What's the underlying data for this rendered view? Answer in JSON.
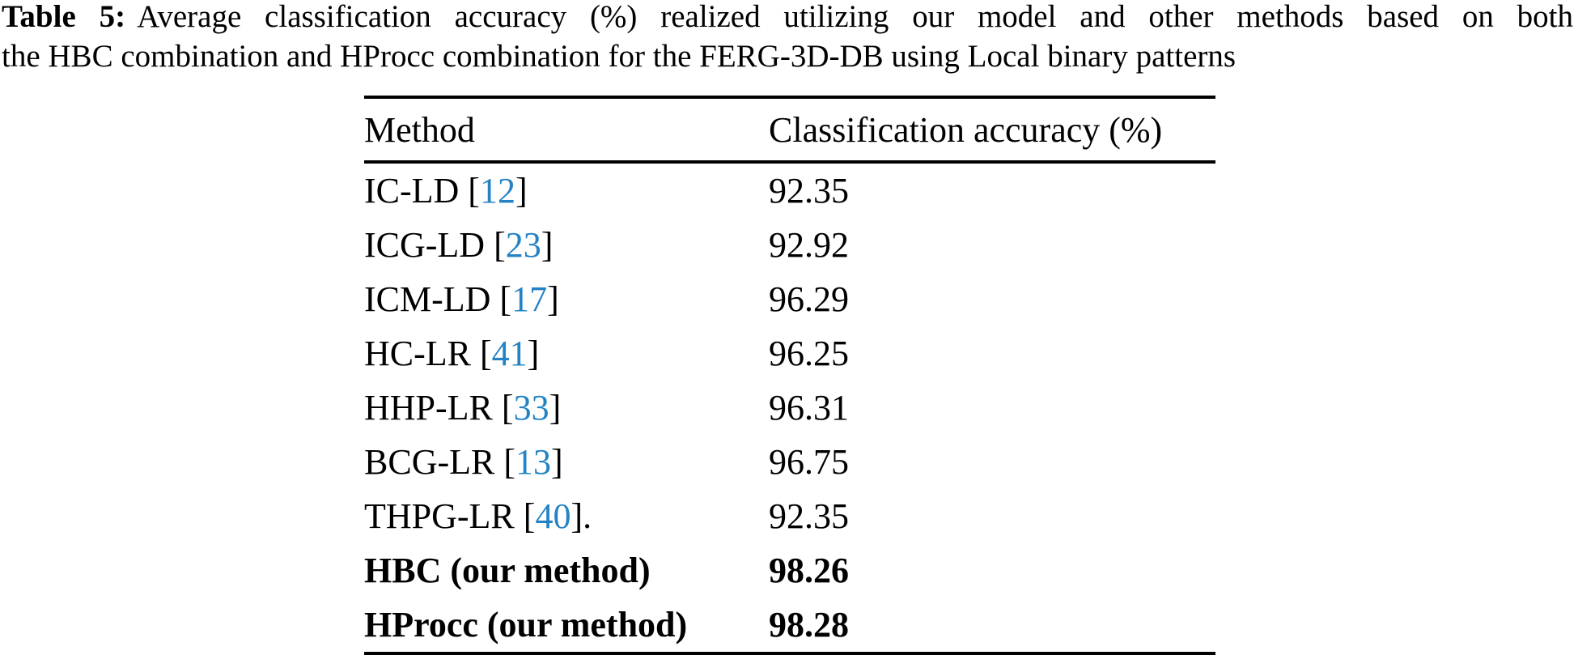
{
  "caption": {
    "label": "Table 5:",
    "line1": "Average classification accuracy (%) realized utilizing our model and other methods based on both",
    "line2": "the HBC combination and HProcc combination for the FERG-3D-DB using Local binary patterns"
  },
  "table": {
    "headers": {
      "method": "Method",
      "accuracy": "Classification accuracy (%)"
    },
    "rows": [
      {
        "method_prefix": "IC-LD [",
        "citation": "12",
        "method_suffix": "]",
        "accuracy": "92.35"
      },
      {
        "method_prefix": "ICG-LD [",
        "citation": "23",
        "method_suffix": "]",
        "accuracy": "92.92"
      },
      {
        "method_prefix": "ICM-LD [",
        "citation": "17",
        "method_suffix": "]",
        "accuracy": "96.29"
      },
      {
        "method_prefix": "HC-LR [",
        "citation": "41",
        "method_suffix": "]",
        "accuracy": "96.25"
      },
      {
        "method_prefix": "HHP-LR [",
        "citation": "33",
        "method_suffix": "]",
        "accuracy": "96.31"
      },
      {
        "method_prefix": "BCG-LR [",
        "citation": "13",
        "method_suffix": "]",
        "accuracy": "96.75"
      },
      {
        "method_prefix": "THPG-LR [",
        "citation": "40",
        "method_suffix": "].",
        "accuracy": "92.35"
      },
      {
        "method_prefix": "HBC (our method)",
        "citation": "",
        "method_suffix": "",
        "accuracy": "98.26"
      },
      {
        "method_prefix": "HProcc (our method)",
        "citation": "",
        "method_suffix": "",
        "accuracy": "98.28"
      }
    ]
  },
  "colors": {
    "citation_blue": "#2383c4",
    "text": "#000000",
    "background": "#ffffff"
  }
}
